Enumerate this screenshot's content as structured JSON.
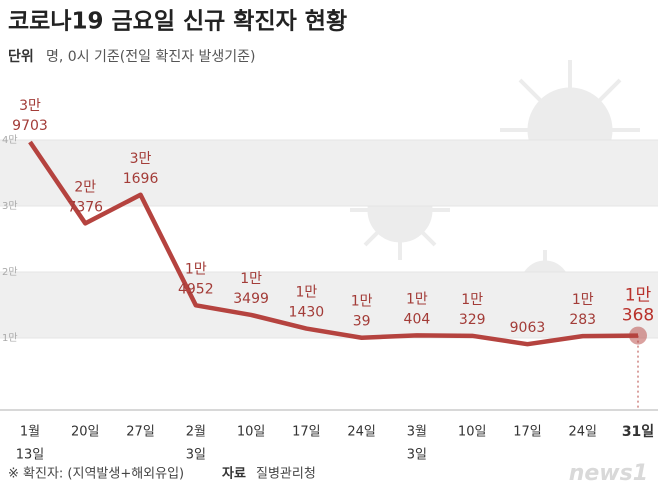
{
  "chart_data": {
    "type": "line",
    "title": "코로나19 금요일 신규 확진자 현황",
    "subtitle_label": "단위",
    "subtitle": "명, 0시 기준(전일 확진자 발생기준)",
    "footnote": "※ 확진자: (지역발생+해외유입)",
    "source_label": "자료",
    "source": "질병관리청",
    "logo": "news1",
    "categories": [
      [
        "1월",
        "13일"
      ],
      [
        "20일"
      ],
      [
        "27일"
      ],
      [
        "2월",
        "3일"
      ],
      [
        "10일"
      ],
      [
        "17일"
      ],
      [
        "24일"
      ],
      [
        "3월",
        "3일"
      ],
      [
        "10일"
      ],
      [
        "17일"
      ],
      [
        "24일"
      ],
      [
        "31일"
      ]
    ],
    "series": [
      {
        "name": "신규 확진자",
        "color": "#b5433f",
        "values": [
          39703,
          27376,
          31696,
          14952,
          13499,
          11430,
          10039,
          10404,
          10329,
          9063,
          10283,
          10368
        ],
        "value_labels": [
          [
            "3만",
            "9703"
          ],
          [
            "2만",
            "7376"
          ],
          [
            "3만",
            "1696"
          ],
          [
            "1만",
            "4952"
          ],
          [
            "1만",
            "3499"
          ],
          [
            "1만",
            "1430"
          ],
          [
            "1만",
            "39"
          ],
          [
            "1만",
            "404"
          ],
          [
            "1만",
            "329"
          ],
          [
            "9063"
          ],
          [
            "1만",
            "283"
          ],
          [
            "1만",
            "368"
          ]
        ]
      }
    ],
    "ylim": [
      0,
      45000
    ],
    "yticks": [
      {
        "value": 10000,
        "label": "1만"
      },
      {
        "value": 20000,
        "label": "2만"
      },
      {
        "value": 30000,
        "label": "3만"
      },
      {
        "value": 40000,
        "label": "4만"
      }
    ],
    "grid": true
  }
}
